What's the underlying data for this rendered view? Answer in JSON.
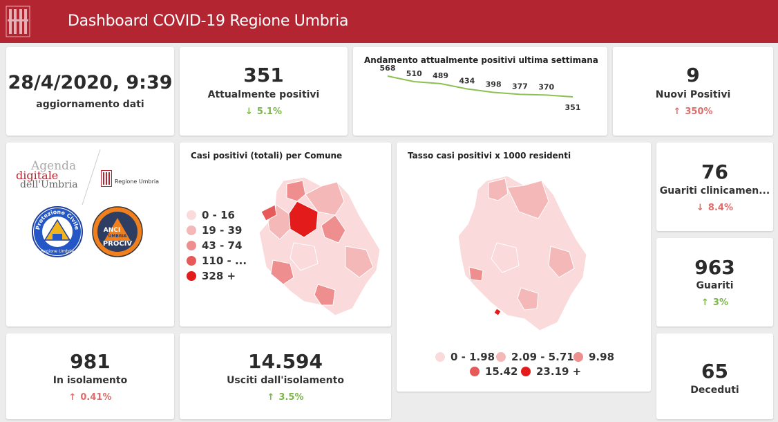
{
  "header": {
    "title": "Dashboard COVID-19 Regione Umbria",
    "logo_icon": "umbria-logo-icon",
    "bg_color": "#b22531"
  },
  "update": {
    "datetime": "28/4/2020, 9:39",
    "label": "aggiornamento dati"
  },
  "positivi": {
    "value": "351",
    "label": "Attualmente positivi",
    "delta": "5.1%",
    "direction": "down",
    "color": "#7ab648"
  },
  "trend": {
    "title": "Andamento attualmente positivi ultima settimana",
    "chart_data": {
      "type": "line",
      "values": [
        568,
        510,
        489,
        434,
        398,
        377,
        370,
        351
      ]
    }
  },
  "nuovi": {
    "value": "9",
    "label": "Nuovi Positivi",
    "delta": "350%",
    "direction": "up",
    "color": "#e06b6b"
  },
  "logos": {
    "agenda_1": "Agenda",
    "agenda_2": "digitale",
    "agenda_3": "dell'Umbria",
    "regione": "Regione Umbria",
    "pc_ring": "Protezione Civile",
    "pc_sub": "Regione Umbria",
    "anci_1": "ANCI",
    "anci_2": "UMBRIA",
    "anci_3": "PROCIV"
  },
  "map1": {
    "title": "Casi positivi (totali) per Comune",
    "legend": [
      {
        "label": "0 - 16",
        "color": "#fadada"
      },
      {
        "label": "19 - 39",
        "color": "#f5b8b8"
      },
      {
        "label": "43 - 74",
        "color": "#ee8e8e"
      },
      {
        "label": "110 - ...",
        "color": "#e65a5a"
      },
      {
        "label": "328 +",
        "color": "#e31b1b"
      }
    ]
  },
  "map2": {
    "title": "Tasso casi positivi x 1000 residenti",
    "legend_row1": [
      {
        "label": "0 - 1.98",
        "color": "#fadada"
      },
      {
        "label": "2.09 - 5.71",
        "color": "#f5b8b8"
      },
      {
        "label": "9.98",
        "color": "#ee8e8e"
      }
    ],
    "legend_row2": [
      {
        "label": "15.42",
        "color": "#e65a5a"
      },
      {
        "label": "23.19 +",
        "color": "#e31b1b"
      }
    ]
  },
  "guariti_clin": {
    "value": "76",
    "label": "Guariti clinicamen...",
    "delta": "8.4%",
    "direction": "down",
    "color": "#e06b6b"
  },
  "guariti": {
    "value": "963",
    "label": "Guariti",
    "delta": "3%",
    "direction": "up",
    "color": "#7ab648"
  },
  "isolamento": {
    "value": "981",
    "label": "In isolamento",
    "delta": "0.41%",
    "direction": "up",
    "color": "#e06b6b"
  },
  "usciti": {
    "value": "14.594",
    "label": "Usciti dall'isolamento",
    "delta": "3.5%",
    "direction": "up",
    "color": "#7ab648"
  },
  "deceduti": {
    "value": "65",
    "label": "Deceduti"
  }
}
